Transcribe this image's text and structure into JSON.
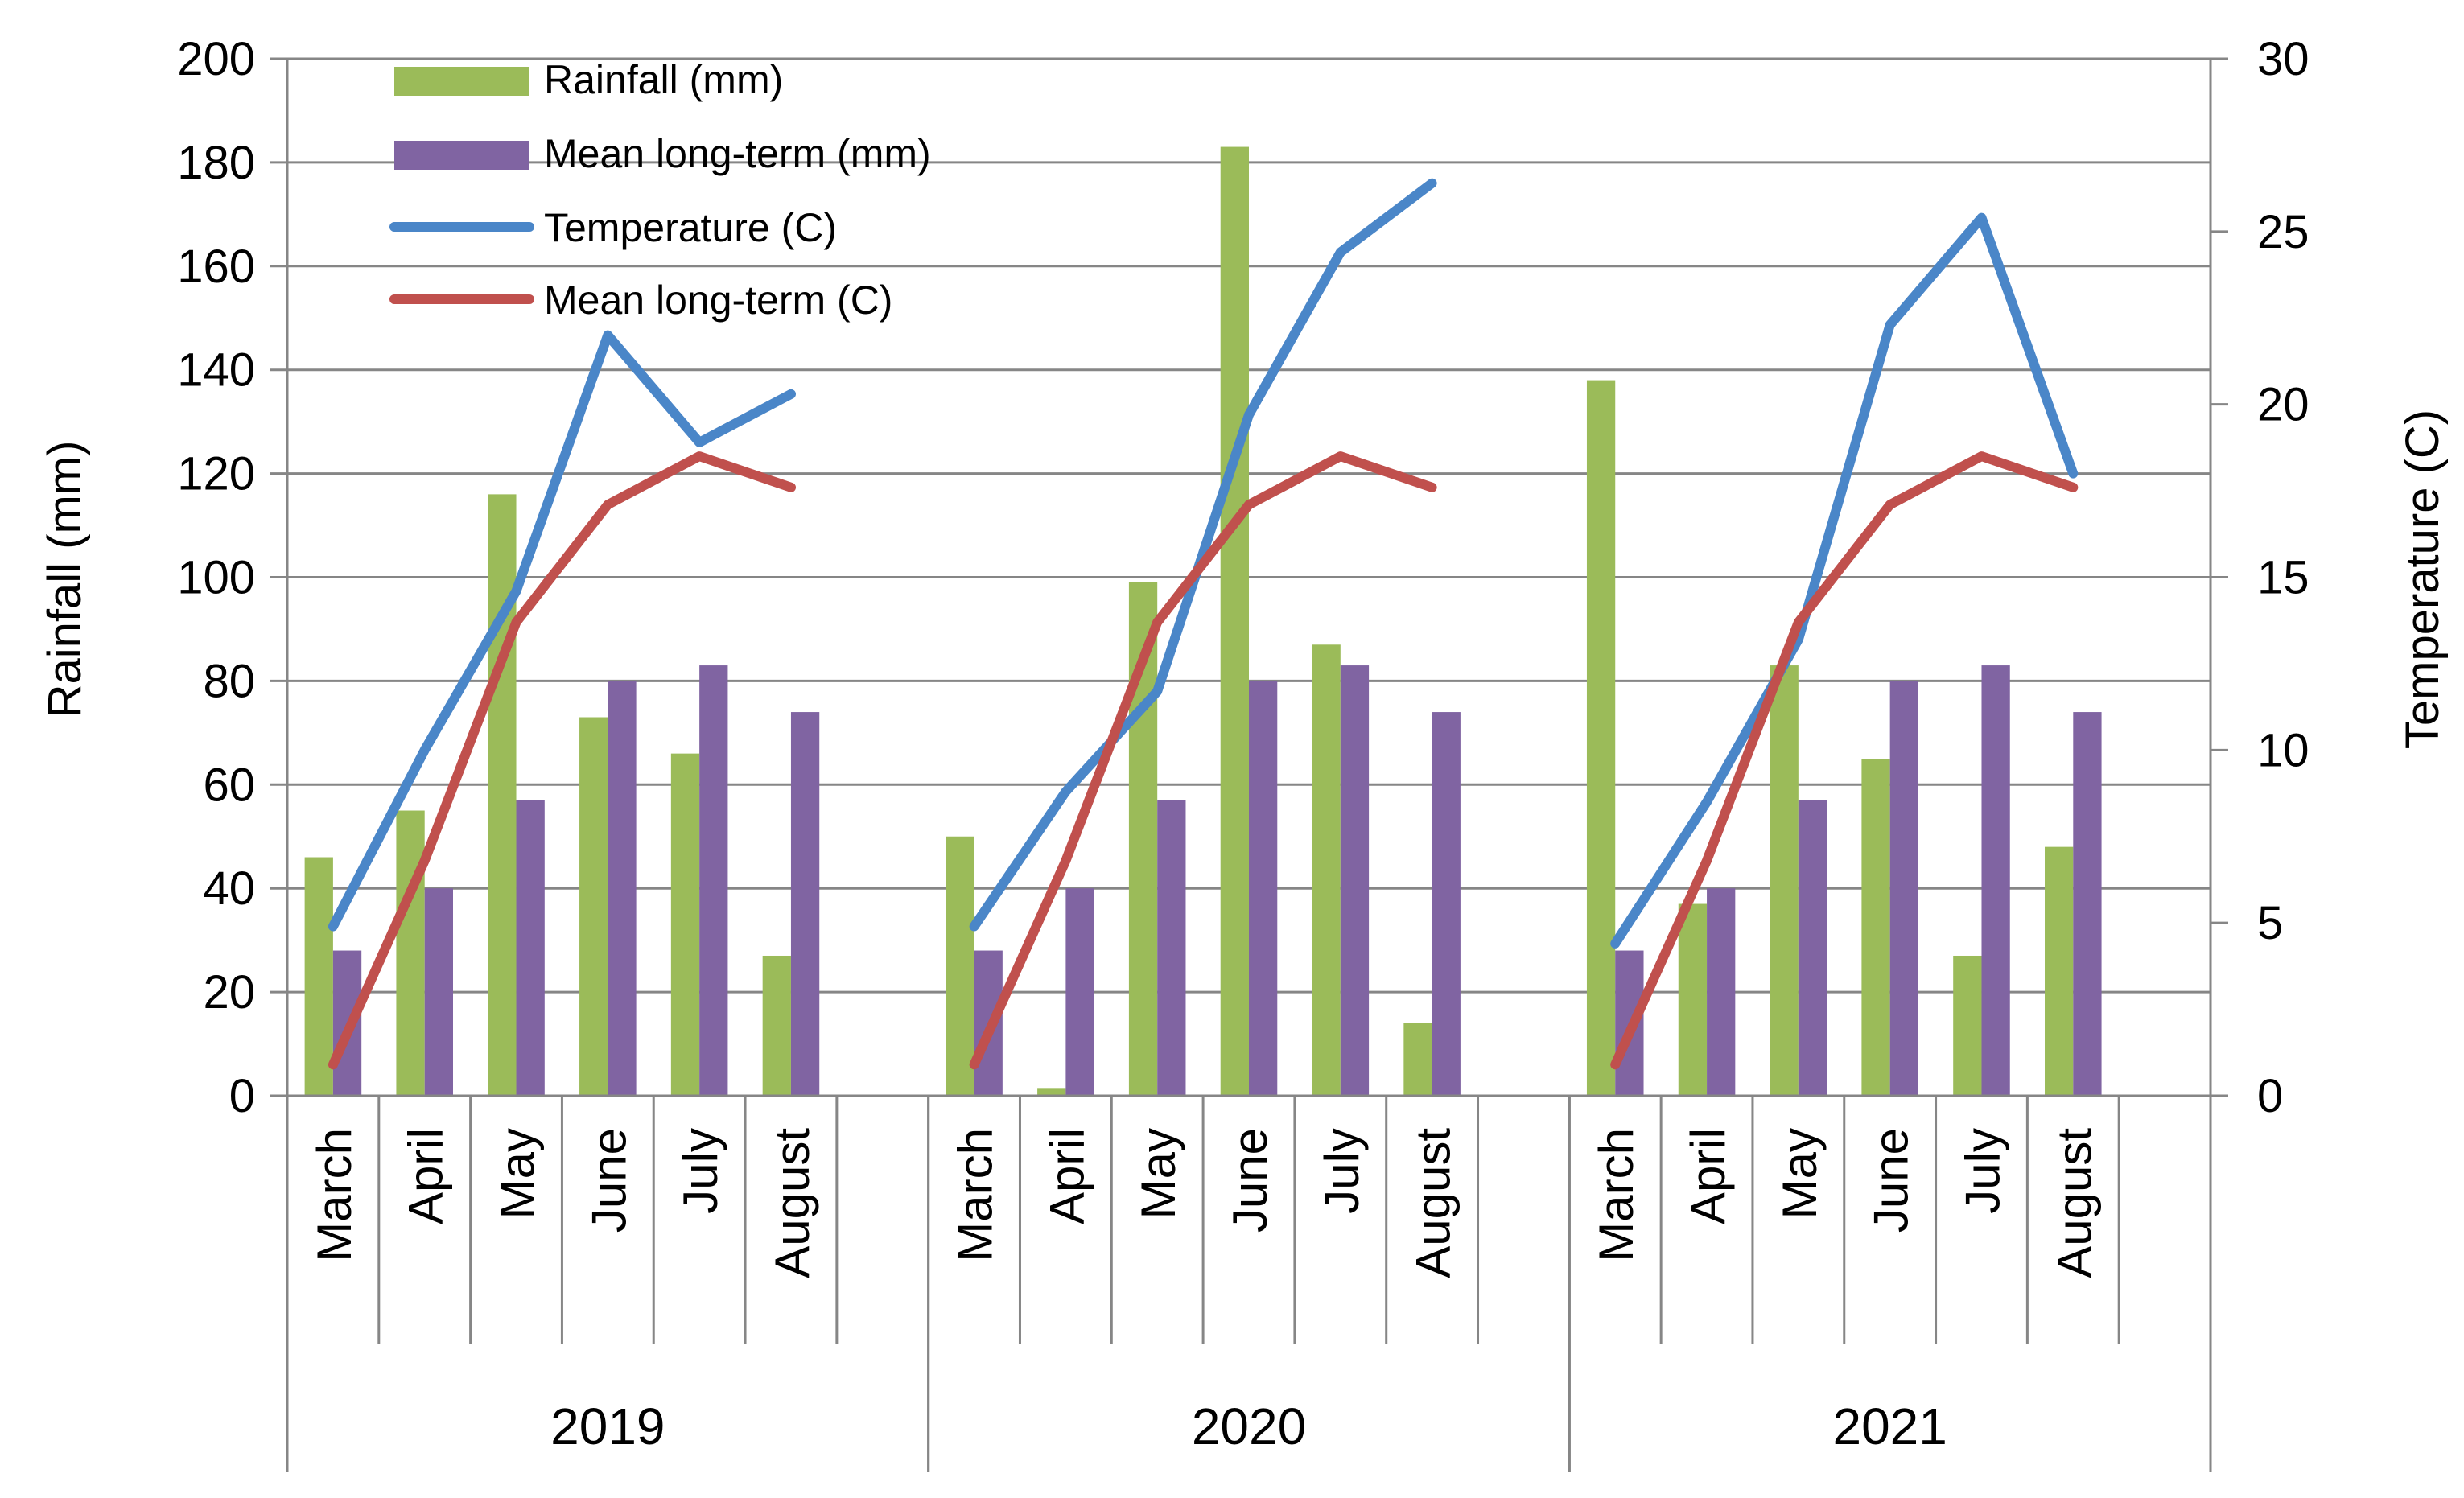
{
  "chart_data": {
    "type": "bar",
    "title": "",
    "ylabel": "Rainfall  (mm)",
    "y2label": "Temperature  (C)",
    "ylim": [
      0,
      200
    ],
    "yticks": [
      0,
      20,
      40,
      60,
      80,
      100,
      120,
      140,
      160,
      180,
      200
    ],
    "y2lim": [
      0,
      30
    ],
    "y2ticks": [
      0,
      5,
      10,
      15,
      20,
      25,
      30
    ],
    "grid": true,
    "legend_position": "top-left",
    "groups": [
      {
        "year": "2019",
        "months": [
          "March",
          "April",
          "May",
          "June",
          "July",
          "August"
        ]
      },
      {
        "year": "2020",
        "months": [
          "March",
          "April",
          "May",
          "June",
          "July",
          "August"
        ]
      },
      {
        "year": "2021",
        "months": [
          "March",
          "April",
          "May",
          "June",
          "July",
          "August"
        ]
      }
    ],
    "series": [
      {
        "name": "Rainfall (mm)",
        "kind": "bar",
        "axis": "left",
        "color": "#9BBB59",
        "values": [
          [
            46,
            55,
            116,
            73,
            66,
            27
          ],
          [
            50,
            1.5,
            99,
            183,
            87,
            14
          ],
          [
            138,
            37,
            83,
            65,
            27,
            48
          ]
        ]
      },
      {
        "name": "Mean long-term (mm)",
        "kind": "bar",
        "axis": "left",
        "color": "#8064A2",
        "values": [
          [
            28,
            40,
            57,
            80,
            83,
            74
          ],
          [
            28,
            40,
            57,
            80,
            83,
            74
          ],
          [
            28,
            40,
            57,
            80,
            83,
            74
          ]
        ]
      },
      {
        "name": "Temperature (C)",
        "kind": "line",
        "axis": "right",
        "color": "#4A86C8",
        "values": [
          [
            4.9,
            10.0,
            14.6,
            22.0,
            18.9,
            20.3
          ],
          [
            4.9,
            8.8,
            11.7,
            19.7,
            24.4,
            26.4
          ],
          [
            4.4,
            8.5,
            13.2,
            22.3,
            25.4,
            18.0
          ]
        ]
      },
      {
        "name": "Mean long-term (C)",
        "kind": "line",
        "axis": "right",
        "color": "#C0504D",
        "values": [
          [
            0.9,
            6.8,
            13.7,
            17.1,
            18.5,
            17.6
          ],
          [
            0.9,
            6.8,
            13.7,
            17.1,
            18.5,
            17.6
          ],
          [
            0.9,
            6.8,
            13.7,
            17.1,
            18.5,
            17.6
          ]
        ]
      }
    ]
  }
}
